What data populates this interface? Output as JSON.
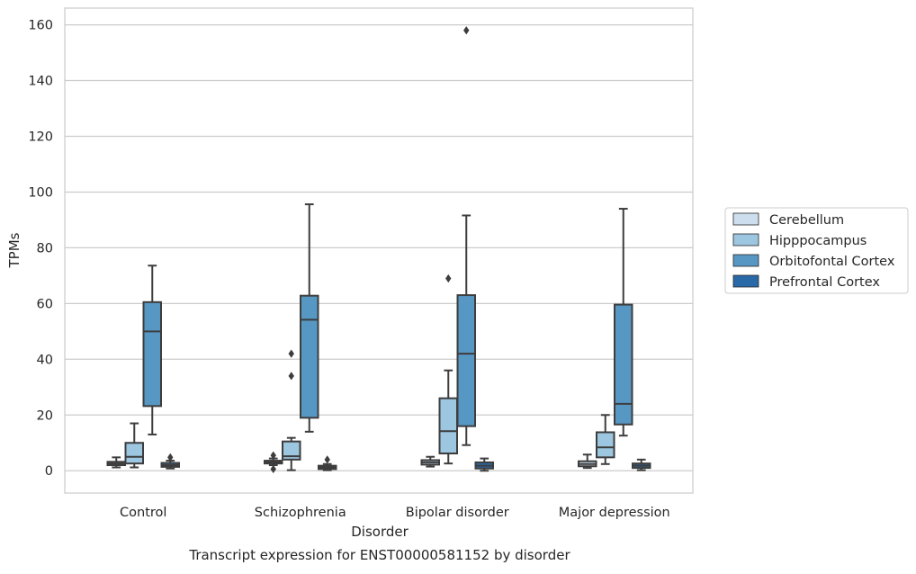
{
  "caption": "Transcript expression for ENST00000581152 by disorder",
  "chart_data": {
    "type": "box",
    "xlabel": "Disorder",
    "ylabel": "TPMs",
    "ylim": [
      -8,
      166
    ],
    "yticks": [
      0,
      20,
      40,
      60,
      80,
      100,
      120,
      140,
      160
    ],
    "grid": "horizontal",
    "legend_position": "right",
    "categories": [
      "Control",
      "Schizophrenia",
      "Bipolar disorder",
      "Major depression"
    ],
    "series": [
      {
        "name": "Cerebellum",
        "color": "#cddfee",
        "boxes": [
          {
            "whislo": 1.2,
            "q1": 2.0,
            "med": 2.6,
            "q3": 3.2,
            "whishi": 4.8,
            "fliers": []
          },
          {
            "whislo": 2.0,
            "q1": 2.6,
            "med": 3.0,
            "q3": 3.6,
            "whishi": 4.4,
            "fliers": [
              0.6,
              5.5
            ]
          },
          {
            "whislo": 1.5,
            "q1": 2.2,
            "med": 3.0,
            "q3": 3.8,
            "whishi": 5.0,
            "fliers": []
          },
          {
            "whislo": 1.0,
            "q1": 1.6,
            "med": 2.4,
            "q3": 3.4,
            "whishi": 5.8,
            "fliers": []
          }
        ]
      },
      {
        "name": "Hipppocampus",
        "color": "#9dc6e0",
        "boxes": [
          {
            "whislo": 1.2,
            "q1": 2.6,
            "med": 5.0,
            "q3": 10.0,
            "whishi": 17.0,
            "fliers": []
          },
          {
            "whislo": 0.2,
            "q1": 4.0,
            "med": 5.2,
            "q3": 10.5,
            "whishi": 11.8,
            "fliers": [
              34.0,
              42.0
            ]
          },
          {
            "whislo": 2.6,
            "q1": 6.2,
            "med": 14.2,
            "q3": 26.0,
            "whishi": 36.0,
            "fliers": [
              69.0
            ]
          },
          {
            "whislo": 2.4,
            "q1": 4.8,
            "med": 8.4,
            "q3": 13.8,
            "whishi": 20.0,
            "fliers": []
          }
        ]
      },
      {
        "name": "Orbitofontal Cortex",
        "color": "#5797c4",
        "boxes": [
          {
            "whislo": 13.0,
            "q1": 23.2,
            "med": 50.0,
            "q3": 60.5,
            "whishi": 73.6,
            "fliers": []
          },
          {
            "whislo": 14.0,
            "q1": 19.0,
            "med": 54.2,
            "q3": 62.8,
            "whishi": 95.6,
            "fliers": []
          },
          {
            "whislo": 9.2,
            "q1": 16.0,
            "med": 42.0,
            "q3": 63.0,
            "whishi": 91.6,
            "fliers": [
              158.0
            ]
          },
          {
            "whislo": 12.6,
            "q1": 16.6,
            "med": 24.0,
            "q3": 59.6,
            "whishi": 94.0,
            "fliers": []
          }
        ]
      },
      {
        "name": "Prefrontal Cortex",
        "color": "#2a69a7",
        "boxes": [
          {
            "whislo": 0.8,
            "q1": 1.4,
            "med": 2.0,
            "q3": 2.8,
            "whishi": 3.6,
            "fliers": [
              4.8
            ]
          },
          {
            "whislo": 0.2,
            "q1": 0.6,
            "med": 1.2,
            "q3": 1.8,
            "whishi": 2.4,
            "fliers": [
              4.0
            ]
          },
          {
            "whislo": 0.0,
            "q1": 0.8,
            "med": 1.8,
            "q3": 3.0,
            "whishi": 4.4,
            "fliers": []
          },
          {
            "whislo": 0.2,
            "q1": 1.0,
            "med": 1.8,
            "q3": 2.6,
            "whishi": 4.0,
            "fliers": []
          }
        ]
      }
    ]
  }
}
